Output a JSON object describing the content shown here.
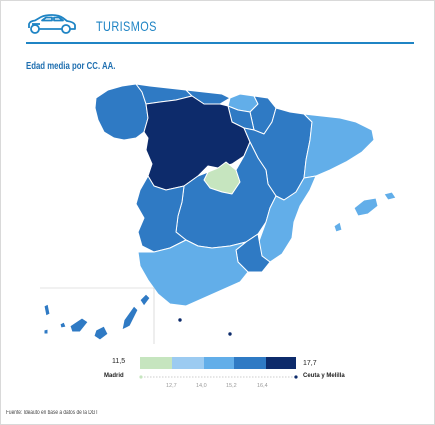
{
  "header": {
    "title": "TURISMOS",
    "icon": "car-icon",
    "accent_color": "#1f84c4"
  },
  "map": {
    "subtitle": "Edad media por CC. AA.",
    "palette": [
      "#c6e5bf",
      "#9ccbf1",
      "#62aee9",
      "#2f7ac4",
      "#0d2b6b"
    ],
    "regions": [
      {
        "id": "galicia",
        "color": "#2f7ac4"
      },
      {
        "id": "asturias",
        "color": "#2f7ac4"
      },
      {
        "id": "cantabria",
        "color": "#2f7ac4"
      },
      {
        "id": "pais-vasco",
        "color": "#62aee9"
      },
      {
        "id": "navarra",
        "color": "#2f7ac4"
      },
      {
        "id": "la-rioja",
        "color": "#2f7ac4"
      },
      {
        "id": "castilla-y-leon",
        "color": "#0d2b6b"
      },
      {
        "id": "aragon",
        "color": "#2f7ac4"
      },
      {
        "id": "cataluna",
        "color": "#62aee9"
      },
      {
        "id": "madrid",
        "color": "#c6e5bf"
      },
      {
        "id": "castilla-la-mancha",
        "color": "#2f7ac4"
      },
      {
        "id": "extremadura",
        "color": "#2f7ac4"
      },
      {
        "id": "comunidad-valenciana",
        "color": "#62aee9"
      },
      {
        "id": "murcia",
        "color": "#2f7ac4"
      },
      {
        "id": "andalucia",
        "color": "#62aee9"
      },
      {
        "id": "baleares",
        "color": "#62aee9"
      },
      {
        "id": "canarias",
        "color": "#2f7ac4"
      },
      {
        "id": "ceuta",
        "color": "#0d2b6b"
      },
      {
        "id": "melilla",
        "color": "#0d2b6b"
      }
    ]
  },
  "legend": {
    "min_value": "11,5",
    "min_label": "Madrid",
    "max_value": "17,7",
    "max_label": "Ceuta y Melilla",
    "breaks": [
      "12,7",
      "14,0",
      "15,2",
      "16,4"
    ]
  },
  "footer": {
    "source": "Fuente: Ideauto en base a datos de la DGT"
  }
}
